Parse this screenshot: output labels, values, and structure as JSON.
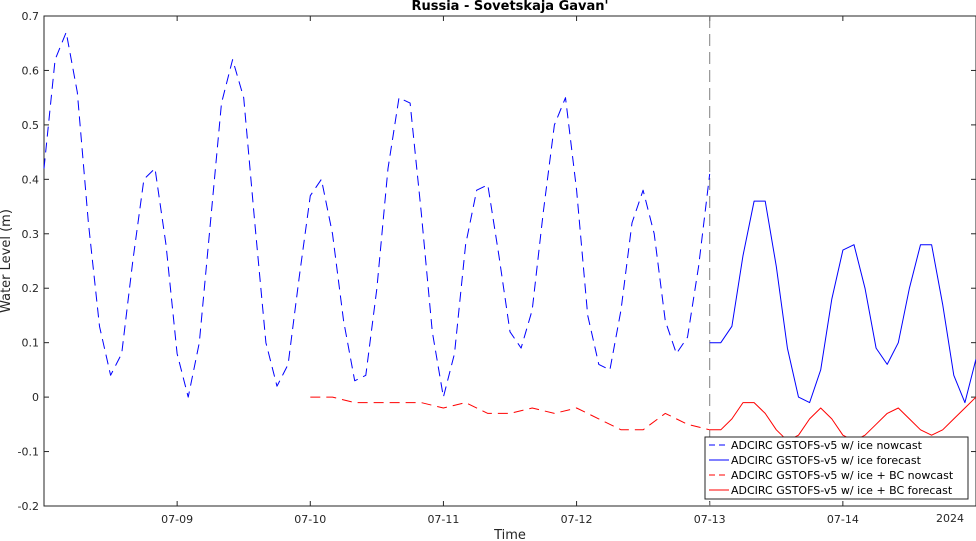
{
  "chart_data": {
    "type": "line",
    "title": "Russia - Sovetskaja Gavan'",
    "xlabel": "Time",
    "ylabel": "Water Level (m)",
    "year_label": "2024",
    "xlim": [
      "2024-07-08 00:00",
      "2024-07-15 00:00"
    ],
    "ylim": [
      -0.2,
      0.7
    ],
    "x_ticks": [
      {
        "t": "2024-07-09 00:00",
        "label": "07-09"
      },
      {
        "t": "2024-07-10 00:00",
        "label": "07-10"
      },
      {
        "t": "2024-07-11 00:00",
        "label": "07-11"
      },
      {
        "t": "2024-07-12 00:00",
        "label": "07-12"
      },
      {
        "t": "2024-07-13 00:00",
        "label": "07-13"
      },
      {
        "t": "2024-07-14 00:00",
        "label": "07-14"
      }
    ],
    "y_ticks": [
      0.7,
      0.6,
      0.5,
      0.4,
      0.3,
      0.2,
      0.1,
      0,
      -0.1,
      -0.2
    ],
    "y_tick_labels": [
      "0.7",
      "0.6",
      "0.5",
      "0.4",
      "0.3",
      "0.2",
      "0.1",
      "0",
      "-0.1",
      "-0.2"
    ],
    "nowcast_forecast_boundary": "2024-07-13 00:00",
    "grid": false,
    "legend_position": "bottom-right",
    "series": [
      {
        "name": "ADCIRC GSTOFS-v5 w/ ice nowcast",
        "color": "#0000ff",
        "dash": "dashed",
        "x": [
          "2024-07-08 00:00",
          "2024-07-08 02:00",
          "2024-07-08 04:00",
          "2024-07-08 06:00",
          "2024-07-08 08:00",
          "2024-07-08 10:00",
          "2024-07-08 12:00",
          "2024-07-08 14:00",
          "2024-07-08 16:00",
          "2024-07-08 18:00",
          "2024-07-08 20:00",
          "2024-07-08 22:00",
          "2024-07-09 00:00",
          "2024-07-09 02:00",
          "2024-07-09 04:00",
          "2024-07-09 06:00",
          "2024-07-09 08:00",
          "2024-07-09 10:00",
          "2024-07-09 12:00",
          "2024-07-09 14:00",
          "2024-07-09 16:00",
          "2024-07-09 18:00",
          "2024-07-09 20:00",
          "2024-07-09 22:00",
          "2024-07-10 00:00",
          "2024-07-10 02:00",
          "2024-07-10 04:00",
          "2024-07-10 06:00",
          "2024-07-10 08:00",
          "2024-07-10 10:00",
          "2024-07-10 12:00",
          "2024-07-10 14:00",
          "2024-07-10 16:00",
          "2024-07-10 18:00",
          "2024-07-10 20:00",
          "2024-07-10 22:00",
          "2024-07-11 00:00",
          "2024-07-11 02:00",
          "2024-07-11 04:00",
          "2024-07-11 06:00",
          "2024-07-11 08:00",
          "2024-07-11 10:00",
          "2024-07-11 12:00",
          "2024-07-11 14:00",
          "2024-07-11 16:00",
          "2024-07-11 18:00",
          "2024-07-11 20:00",
          "2024-07-11 22:00",
          "2024-07-12 00:00",
          "2024-07-12 02:00",
          "2024-07-12 04:00",
          "2024-07-12 06:00",
          "2024-07-12 08:00",
          "2024-07-12 10:00",
          "2024-07-12 12:00",
          "2024-07-12 14:00",
          "2024-07-12 16:00",
          "2024-07-12 18:00",
          "2024-07-12 20:00",
          "2024-07-12 22:00",
          "2024-07-13 00:00"
        ],
        "y": [
          0.42,
          0.62,
          0.67,
          0.56,
          0.32,
          0.13,
          0.04,
          0.08,
          0.25,
          0.4,
          0.42,
          0.28,
          0.08,
          0.0,
          0.1,
          0.32,
          0.54,
          0.62,
          0.55,
          0.32,
          0.1,
          0.02,
          0.06,
          0.22,
          0.37,
          0.4,
          0.3,
          0.14,
          0.03,
          0.04,
          0.2,
          0.42,
          0.55,
          0.54,
          0.34,
          0.12,
          0.0,
          0.08,
          0.28,
          0.38,
          0.39,
          0.26,
          0.12,
          0.09,
          0.16,
          0.34,
          0.5,
          0.55,
          0.38,
          0.15,
          0.06,
          0.05,
          0.16,
          0.32,
          0.38,
          0.3,
          0.14,
          0.08,
          0.11,
          0.24,
          0.41
        ]
      },
      {
        "name": "ADCIRC GSTOFS-v5 w/ ice forecast",
        "color": "#0000ff",
        "dash": "solid",
        "x": [
          "2024-07-13 00:00",
          "2024-07-13 02:00",
          "2024-07-13 04:00",
          "2024-07-13 06:00",
          "2024-07-13 08:00",
          "2024-07-13 10:00",
          "2024-07-13 12:00",
          "2024-07-13 14:00",
          "2024-07-13 16:00",
          "2024-07-13 18:00",
          "2024-07-13 20:00",
          "2024-07-13 22:00",
          "2024-07-14 00:00",
          "2024-07-14 02:00",
          "2024-07-14 04:00",
          "2024-07-14 06:00",
          "2024-07-14 08:00",
          "2024-07-14 10:00",
          "2024-07-14 12:00",
          "2024-07-14 14:00",
          "2024-07-14 16:00",
          "2024-07-14 18:00",
          "2024-07-14 20:00",
          "2024-07-14 22:00",
          "2024-07-15 00:00"
        ],
        "y": [
          0.1,
          0.1,
          0.13,
          0.26,
          0.36,
          0.36,
          0.24,
          0.09,
          0.0,
          -0.01,
          0.05,
          0.18,
          0.27,
          0.28,
          0.2,
          0.09,
          0.06,
          0.1,
          0.2,
          0.28,
          0.28,
          0.17,
          0.04,
          -0.01,
          0.07
        ]
      },
      {
        "name": "ADCIRC GSTOFS-v5 w/ ice + BC nowcast",
        "color": "#ff0000",
        "dash": "dashed",
        "x": [
          "2024-07-10 00:00",
          "2024-07-10 04:00",
          "2024-07-10 08:00",
          "2024-07-10 12:00",
          "2024-07-10 16:00",
          "2024-07-10 20:00",
          "2024-07-11 00:00",
          "2024-07-11 04:00",
          "2024-07-11 08:00",
          "2024-07-11 12:00",
          "2024-07-11 16:00",
          "2024-07-11 20:00",
          "2024-07-12 00:00",
          "2024-07-12 04:00",
          "2024-07-12 08:00",
          "2024-07-12 12:00",
          "2024-07-12 16:00",
          "2024-07-12 20:00",
          "2024-07-13 00:00"
        ],
        "y": [
          0.0,
          0.0,
          -0.01,
          -0.01,
          -0.01,
          -0.01,
          -0.02,
          -0.01,
          -0.03,
          -0.03,
          -0.02,
          -0.03,
          -0.02,
          -0.04,
          -0.06,
          -0.06,
          -0.03,
          -0.05,
          -0.06
        ]
      },
      {
        "name": "ADCIRC GSTOFS-v5 w/ ice + BC forecast",
        "color": "#ff0000",
        "dash": "solid",
        "x": [
          "2024-07-13 00:00",
          "2024-07-13 02:00",
          "2024-07-13 04:00",
          "2024-07-13 06:00",
          "2024-07-13 08:00",
          "2024-07-13 10:00",
          "2024-07-13 12:00",
          "2024-07-13 14:00",
          "2024-07-13 16:00",
          "2024-07-13 18:00",
          "2024-07-13 20:00",
          "2024-07-13 22:00",
          "2024-07-14 00:00",
          "2024-07-14 02:00",
          "2024-07-14 04:00",
          "2024-07-14 06:00",
          "2024-07-14 08:00",
          "2024-07-14 10:00",
          "2024-07-14 12:00",
          "2024-07-14 14:00",
          "2024-07-14 16:00",
          "2024-07-14 18:00",
          "2024-07-14 20:00",
          "2024-07-14 22:00",
          "2024-07-15 00:00"
        ],
        "y": [
          -0.06,
          -0.06,
          -0.04,
          -0.01,
          -0.01,
          -0.03,
          -0.06,
          -0.08,
          -0.07,
          -0.04,
          -0.02,
          -0.04,
          -0.07,
          -0.08,
          -0.07,
          -0.05,
          -0.03,
          -0.02,
          -0.04,
          -0.06,
          -0.07,
          -0.06,
          -0.04,
          -0.02,
          0.0
        ]
      }
    ]
  }
}
